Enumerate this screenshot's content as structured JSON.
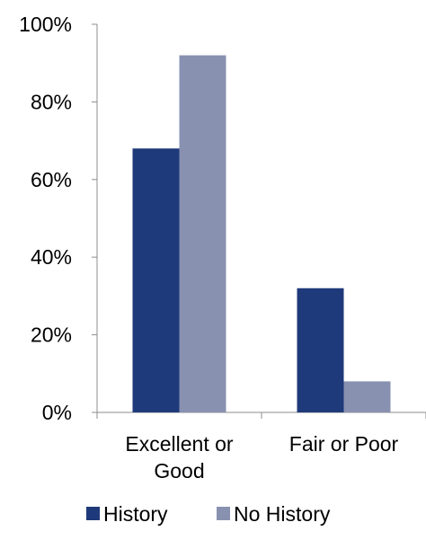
{
  "chart_data": {
    "type": "bar",
    "categories": [
      "Excellent or Good",
      "Fair or Poor"
    ],
    "category_lines": [
      [
        "Excellent or",
        "Good"
      ],
      [
        "Fair or Poor"
      ]
    ],
    "series": [
      {
        "name": "History",
        "values": [
          68,
          32
        ],
        "color": "#1f3a7a"
      },
      {
        "name": "No History",
        "values": [
          92,
          8
        ],
        "color": "#8991b1"
      }
    ],
    "y_ticks": [
      0,
      20,
      40,
      60,
      80,
      100
    ],
    "y_tick_labels": [
      "0%",
      "20%",
      "40%",
      "60%",
      "80%",
      "100%"
    ],
    "ylim": [
      0,
      100
    ],
    "grid": false,
    "legend_position": "bottom",
    "axis_color": "#8c8c8c"
  }
}
